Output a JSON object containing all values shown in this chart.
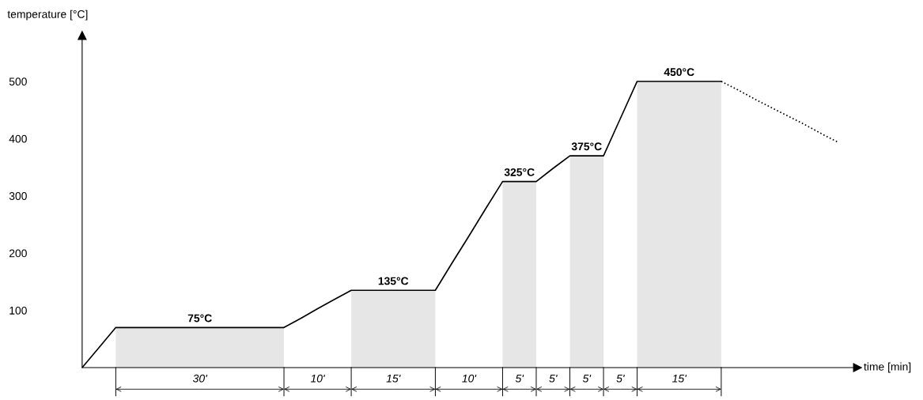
{
  "chart_data": {
    "type": "line",
    "xlabel": "time [min]",
    "ylabel": "temperature [°C]",
    "categories": [
      null,
      null,
      null,
      null,
      null,
      null,
      null,
      null,
      null,
      null,
      null,
      null,
      null,
      null,
      null,
      null,
      null,
      null,
      null,
      null,
      null,
      null,
      null,
      null,
      null,
      null,
      null,
      null,
      null,
      null,
      null,
      null,
      null,
      null,
      null,
      null,
      null,
      null,
      null,
      null,
      null,
      null,
      null,
      null,
      null,
      null
    ],
    "ylim": [
      0,
      580
    ],
    "yticks": [
      100,
      200,
      300,
      400,
      500
    ],
    "tick_labels": "y",
    "grid": false,
    "legend": false,
    "marker": "none",
    "series": [
      {
        "color": "#000000",
        "line_style": "solid",
        "values": [
          0,
          35,
          70,
          70,
          70,
          70,
          70,
          70,
          70,
          70,
          70,
          70,
          70,
          86,
          103,
          119,
          135,
          135,
          135,
          135,
          135,
          135,
          183,
          230,
          278,
          325,
          325,
          325,
          348,
          370,
          370,
          370,
          435,
          500,
          500,
          500,
          500,
          500,
          500,
          null,
          null,
          null,
          null,
          null,
          null,
          null
        ]
      },
      {
        "color": "#000000",
        "line_style": "dotted",
        "values": [
          null,
          null,
          null,
          null,
          null,
          null,
          null,
          null,
          null,
          null,
          null,
          null,
          null,
          null,
          null,
          null,
          null,
          null,
          null,
          null,
          null,
          null,
          null,
          null,
          null,
          null,
          null,
          null,
          null,
          null,
          null,
          null,
          null,
          null,
          null,
          null,
          null,
          null,
          500,
          485,
          469,
          454,
          439,
          424,
          408,
          393
        ]
      }
    ],
    "annotations": [
      {
        "text": "75°C",
        "y": 70
      },
      {
        "text": "135°C",
        "y": 135
      },
      {
        "text": "325°C",
        "y": 325
      },
      {
        "text": "375°C",
        "y": 370
      },
      {
        "text": "450°C",
        "y": 500
      },
      "30'",
      "10'",
      "15'",
      "10'",
      "5'",
      "5'",
      "5'",
      "5'",
      "15'"
    ]
  }
}
